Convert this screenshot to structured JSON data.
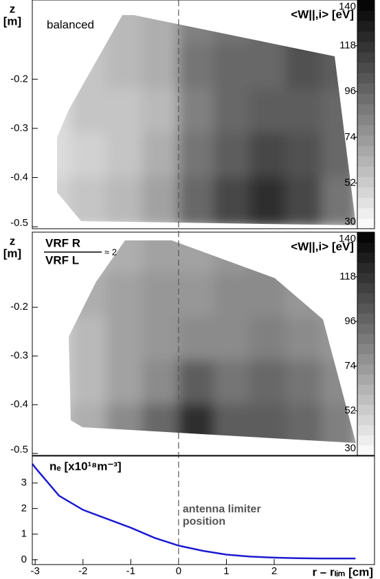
{
  "chart_data": [
    {
      "type": "heatmap",
      "annotation": "balanced",
      "colorbar_label": "<W||,i> [eV]",
      "ylabel": [
        "z",
        "[m]"
      ],
      "x_edges": [
        -3.1,
        -2.25,
        -1.5,
        -0.75,
        0,
        0.75,
        1.5,
        2.25,
        3,
        3.75
      ],
      "z_edges": [
        -0.04,
        -0.13,
        -0.22,
        -0.31,
        -0.4,
        -0.5
      ],
      "values": [
        [
          50,
          55,
          60,
          65,
          85,
          90,
          95,
          110,
          110
        ],
        [
          50,
          55,
          60,
          65,
          90,
          95,
          95,
          105,
          100
        ],
        [
          45,
          55,
          55,
          60,
          85,
          95,
          100,
          100,
          95
        ],
        [
          45,
          50,
          55,
          65,
          90,
          100,
          110,
          105,
          95
        ],
        [
          50,
          55,
          60,
          70,
          95,
          110,
          120,
          110,
          90
        ]
      ],
      "xlim": [
        -3.06,
        3.71
      ],
      "ylim": [
        -0.504,
        -0.039
      ],
      "yticks": [
        -0.2,
        -0.3,
        -0.4,
        -0.5
      ],
      "clim": [
        30,
        140
      ],
      "cticks": [
        30,
        52,
        74,
        96,
        118,
        140
      ]
    },
    {
      "type": "heatmap",
      "annotation": [
        "VRF R",
        "VRF L",
        "≈ 2"
      ],
      "colorbar_label": "<W||,i> [eV]",
      "ylabel": [
        "z",
        "[m]"
      ],
      "x_edges": [
        -3.1,
        -2.25,
        -1.5,
        -0.75,
        0,
        0.75,
        1.5,
        2.25,
        3,
        3.75
      ],
      "z_edges": [
        -0.04,
        -0.13,
        -0.22,
        -0.31,
        -0.4,
        -0.5
      ],
      "values": [
        [
          55,
          60,
          65,
          70,
          70,
          75,
          80,
          80,
          75
        ],
        [
          55,
          65,
          70,
          75,
          75,
          80,
          80,
          75,
          70
        ],
        [
          50,
          60,
          70,
          75,
          80,
          80,
          85,
          80,
          75
        ],
        [
          50,
          60,
          70,
          80,
          100,
          90,
          95,
          90,
          80
        ],
        [
          55,
          65,
          80,
          95,
          120,
          100,
          100,
          95,
          85
        ]
      ],
      "xlim": [
        -3.06,
        3.71
      ],
      "ylim": [
        -0.504,
        -0.046
      ],
      "yticks": [
        -0.2,
        -0.3,
        -0.4,
        -0.5
      ],
      "clim": [
        30,
        140
      ],
      "cticks": [
        30,
        52,
        74,
        96,
        118,
        140
      ]
    },
    {
      "type": "line",
      "ylabel": "nₑ [x10¹⁸m⁻³]",
      "xlabel": "r – rₗᵢₘ [cm]",
      "annotation": [
        "antenna limiter",
        "position"
      ],
      "x": [
        -3.06,
        -3,
        -2.5,
        -2,
        -1.5,
        -1,
        -0.5,
        0,
        0.5,
        1,
        1.5,
        2,
        2.5,
        3,
        3.7
      ],
      "values": [
        3.75,
        3.6,
        2.5,
        1.95,
        1.6,
        1.25,
        0.85,
        0.55,
        0.35,
        0.2,
        0.12,
        0.08,
        0.06,
        0.05,
        0.05
      ],
      "color": "#1a1ad0",
      "vline": 0,
      "xlim": [
        -3.06,
        3.71
      ],
      "ylim": [
        -0.19,
        4.05
      ],
      "xticks": [
        -3,
        -2,
        -1,
        0,
        1,
        2
      ],
      "yticks": [
        0,
        1,
        2,
        3
      ]
    }
  ]
}
